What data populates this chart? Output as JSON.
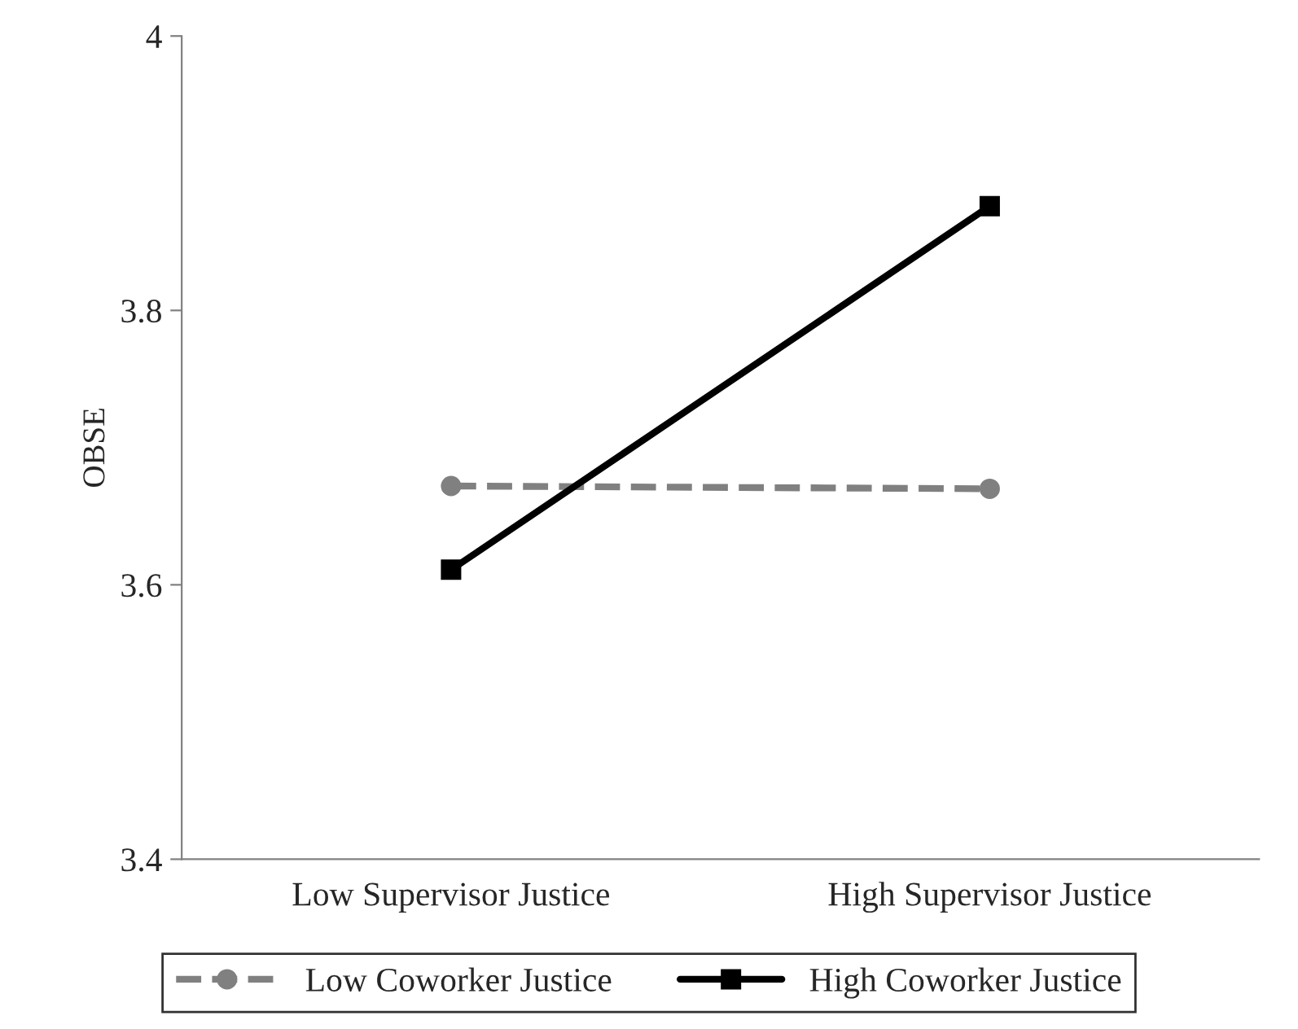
{
  "chart_data": {
    "type": "line",
    "ylabel": "OBSE",
    "categories": [
      "Low Supervisor Justice",
      "High Supervisor Justice"
    ],
    "series": [
      {
        "name": "Low Coworker Justice",
        "color": "#808080",
        "values": [
          3.672,
          3.67
        ],
        "marker": "circle",
        "line_style": "dashed"
      },
      {
        "name": "High Coworker Justice",
        "color": "#000000",
        "values": [
          3.611,
          3.876
        ],
        "marker": "square",
        "line_style": "solid"
      }
    ],
    "ylim": [
      3.4,
      4
    ],
    "yticks": [
      3.4,
      3.6,
      3.8,
      4
    ],
    "grid": false,
    "legend": "bottom"
  }
}
